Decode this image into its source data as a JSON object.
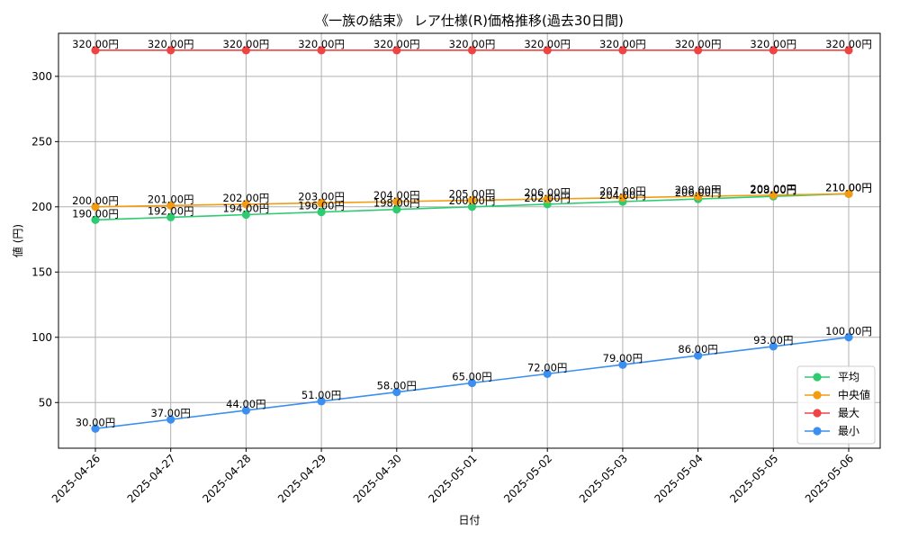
{
  "chart_data": {
    "type": "line",
    "title": "《一族の結束》 レア仕様(R)価格推移(過去30日間)",
    "xlabel": "日付",
    "ylabel": "値 (円)",
    "categories": [
      "2025-04-26",
      "2025-04-27",
      "2025-04-28",
      "2025-04-29",
      "2025-04-30",
      "2025-05-01",
      "2025-05-02",
      "2025-05-03",
      "2025-05-04",
      "2025-05-05",
      "2025-05-06"
    ],
    "ylim": [
      15,
      333
    ],
    "yticks": [
      50,
      100,
      150,
      200,
      250,
      300
    ],
    "grid": true,
    "legend_position": "lower-right",
    "value_suffix": "円",
    "series": [
      {
        "name": "平均",
        "color": "#2ecc71",
        "values": [
          190,
          192,
          194,
          196,
          198,
          200,
          202,
          204,
          206,
          208,
          210
        ],
        "labels": [
          "190.00円",
          "192.00円",
          "194.00円",
          "196.00円",
          "198.00円",
          "200.00円",
          "202.00円",
          "204.00円",
          "206.00円",
          "208.00円",
          "210.00円"
        ]
      },
      {
        "name": "中央値",
        "color": "#f39c12",
        "values": [
          200,
          201,
          202,
          203,
          204,
          205,
          206,
          207,
          208,
          209,
          210
        ],
        "labels": [
          "200.00円",
          "201.00円",
          "202.00円",
          "203.00円",
          "204.00円",
          "205.00円",
          "206.00円",
          "207.00円",
          "208.00円",
          "209.00円",
          "210.00円"
        ]
      },
      {
        "name": "最大",
        "color": "#ef4444",
        "values": [
          320,
          320,
          320,
          320,
          320,
          320,
          320,
          320,
          320,
          320,
          320
        ],
        "labels": [
          "320.00円",
          "320.00円",
          "320.00円",
          "320.00円",
          "320.00円",
          "320.00円",
          "320.00円",
          "320.00円",
          "320.00円",
          "320.00円",
          "320.00円"
        ]
      },
      {
        "name": "最小",
        "color": "#3b8ff0",
        "values": [
          30,
          37,
          44,
          51,
          58,
          65,
          72,
          79,
          86,
          93,
          100
        ],
        "labels": [
          "30.00円",
          "37.00円",
          "44.00円",
          "51.00円",
          "58.00円",
          "65.00円",
          "72.00円",
          "79.00円",
          "86.00円",
          "93.00円",
          "100.00円"
        ]
      }
    ]
  }
}
